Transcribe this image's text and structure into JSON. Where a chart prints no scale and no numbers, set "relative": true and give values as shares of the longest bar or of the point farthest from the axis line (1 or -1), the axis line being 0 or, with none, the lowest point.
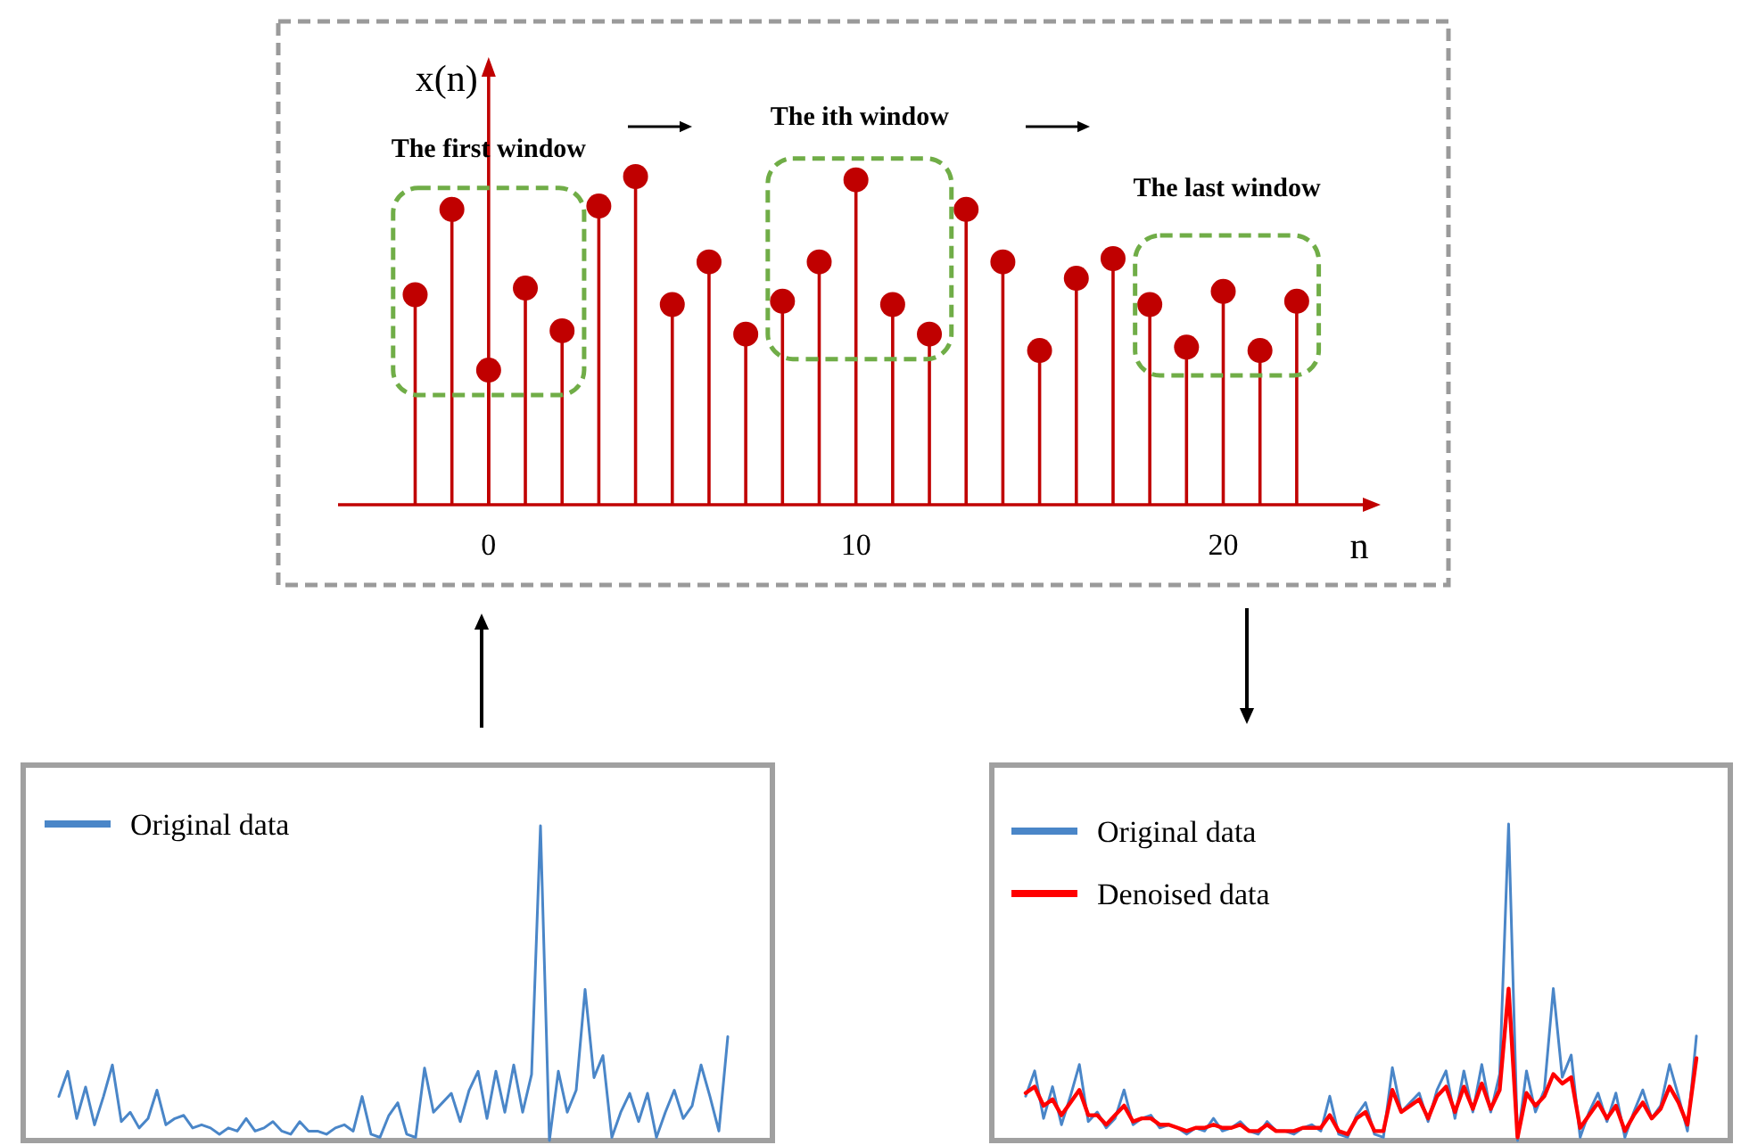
{
  "chart_data": [
    {
      "type": "lollipop",
      "xlabel": "n",
      "ylabel": "x(n)",
      "relative": true,
      "color": "#c00000",
      "x": [
        -2,
        -1,
        0,
        1,
        2,
        3,
        4,
        5,
        6,
        7,
        8,
        9,
        10,
        11,
        12,
        13,
        14,
        15,
        16,
        17,
        18,
        19,
        20,
        21,
        22
      ],
      "values": [
        0.64,
        0.9,
        0.41,
        0.66,
        0.53,
        0.91,
        1.0,
        0.61,
        0.74,
        0.52,
        0.62,
        0.74,
        0.99,
        0.61,
        0.52,
        0.9,
        0.74,
        0.47,
        0.69,
        0.75,
        0.61,
        0.48,
        0.65,
        0.47,
        0.62
      ],
      "xlim": [
        -4.1,
        23.8
      ],
      "xticks": [
        0,
        10,
        20
      ],
      "annotations": [
        "The first window",
        "The ith window",
        "The last window"
      ]
    },
    {
      "type": "line",
      "relative": true,
      "legend": "top left",
      "categories": [
        null,
        null,
        null,
        null,
        null,
        null,
        null,
        null,
        null,
        null,
        null,
        null,
        null,
        null,
        null,
        null,
        null,
        null,
        null,
        null,
        null,
        null,
        null,
        null,
        null,
        null,
        null,
        null,
        null,
        null,
        null,
        null,
        null,
        null,
        null,
        null,
        null,
        null,
        null,
        null,
        null,
        null,
        null,
        null,
        null,
        null,
        null,
        null,
        null,
        null,
        null,
        null,
        null,
        null,
        null,
        null,
        null,
        null,
        null,
        null,
        null,
        null,
        null,
        null,
        null,
        null,
        null,
        null,
        null,
        null,
        null,
        null,
        null,
        null,
        null,
        null
      ],
      "series": [
        {
          "name": "Original data",
          "color": "#4a86c8",
          "values": [
            0.14,
            0.22,
            0.07,
            0.17,
            0.05,
            0.14,
            0.24,
            0.06,
            0.09,
            0.04,
            0.07,
            0.16,
            0.05,
            0.07,
            0.08,
            0.04,
            0.05,
            0.04,
            0.02,
            0.04,
            0.03,
            0.07,
            0.03,
            0.04,
            0.06,
            0.03,
            0.02,
            0.06,
            0.03,
            0.03,
            0.02,
            0.04,
            0.05,
            0.03,
            0.14,
            0.02,
            0.01,
            0.08,
            0.12,
            0.02,
            0.01,
            0.23,
            0.09,
            0.12,
            0.15,
            0.06,
            0.16,
            0.22,
            0.07,
            0.22,
            0.09,
            0.24,
            0.09,
            0.21,
            1.0,
            0.0,
            0.22,
            0.09,
            0.16,
            0.48,
            0.2,
            0.27,
            0.01,
            0.09,
            0.15,
            0.06,
            0.15,
            0.01,
            0.09,
            0.16,
            0.07,
            0.11,
            0.24,
            0.14,
            0.03,
            0.33
          ]
        }
      ]
    },
    {
      "type": "line",
      "relative": true,
      "legend": "top left",
      "categories": [
        null,
        null,
        null,
        null,
        null,
        null,
        null,
        null,
        null,
        null,
        null,
        null,
        null,
        null,
        null,
        null,
        null,
        null,
        null,
        null,
        null,
        null,
        null,
        null,
        null,
        null,
        null,
        null,
        null,
        null,
        null,
        null,
        null,
        null,
        null,
        null,
        null,
        null,
        null,
        null,
        null,
        null,
        null,
        null,
        null,
        null,
        null,
        null,
        null,
        null,
        null,
        null,
        null,
        null,
        null,
        null,
        null,
        null,
        null,
        null,
        null,
        null,
        null,
        null,
        null,
        null,
        null,
        null,
        null,
        null,
        null,
        null,
        null,
        null,
        null,
        null
      ],
      "series": [
        {
          "name": "Original data",
          "color": "#4a86c8",
          "values": [
            0.14,
            0.22,
            0.07,
            0.17,
            0.05,
            0.14,
            0.24,
            0.06,
            0.09,
            0.04,
            0.07,
            0.16,
            0.05,
            0.07,
            0.08,
            0.04,
            0.05,
            0.04,
            0.02,
            0.04,
            0.03,
            0.07,
            0.03,
            0.04,
            0.06,
            0.03,
            0.02,
            0.06,
            0.03,
            0.03,
            0.02,
            0.04,
            0.05,
            0.03,
            0.14,
            0.02,
            0.01,
            0.08,
            0.12,
            0.02,
            0.01,
            0.23,
            0.09,
            0.12,
            0.15,
            0.06,
            0.16,
            0.22,
            0.07,
            0.22,
            0.09,
            0.24,
            0.09,
            0.21,
            1.0,
            0.0,
            0.22,
            0.09,
            0.16,
            0.48,
            0.2,
            0.27,
            0.01,
            0.09,
            0.15,
            0.06,
            0.15,
            0.01,
            0.09,
            0.16,
            0.07,
            0.11,
            0.24,
            0.14,
            0.03,
            0.33
          ]
        },
        {
          "name": "Denoised data",
          "color": "#ff0000",
          "values": [
            0.15,
            0.17,
            0.11,
            0.13,
            0.08,
            0.12,
            0.16,
            0.08,
            0.08,
            0.05,
            0.08,
            0.11,
            0.06,
            0.07,
            0.07,
            0.05,
            0.05,
            0.04,
            0.03,
            0.04,
            0.04,
            0.05,
            0.04,
            0.04,
            0.05,
            0.03,
            0.03,
            0.05,
            0.03,
            0.03,
            0.03,
            0.04,
            0.04,
            0.04,
            0.08,
            0.03,
            0.02,
            0.07,
            0.09,
            0.03,
            0.03,
            0.16,
            0.09,
            0.11,
            0.13,
            0.07,
            0.14,
            0.17,
            0.09,
            0.17,
            0.1,
            0.18,
            0.1,
            0.16,
            0.48,
            0.01,
            0.15,
            0.11,
            0.14,
            0.21,
            0.18,
            0.2,
            0.04,
            0.08,
            0.12,
            0.07,
            0.11,
            0.03,
            0.08,
            0.12,
            0.07,
            0.1,
            0.17,
            0.12,
            0.05,
            0.26
          ]
        }
      ]
    }
  ]
}
